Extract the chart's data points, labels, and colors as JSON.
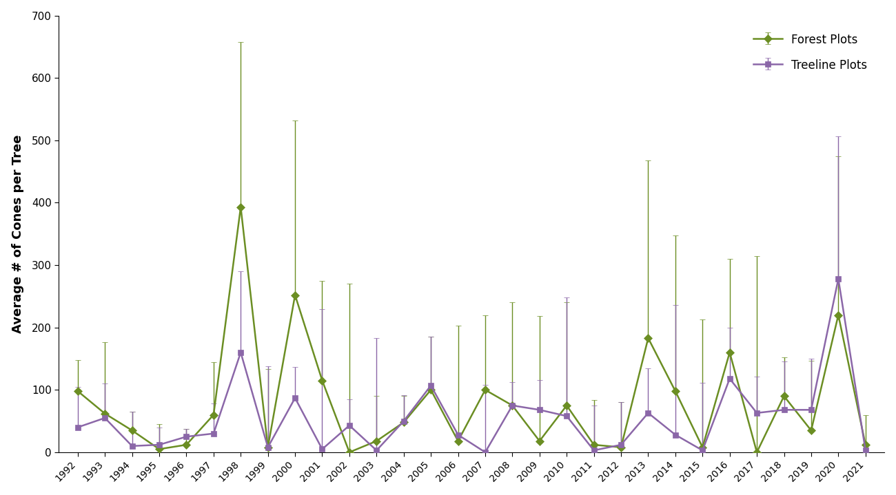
{
  "years": [
    1992,
    1993,
    1994,
    1995,
    1996,
    1997,
    1998,
    1999,
    2000,
    2001,
    2002,
    2003,
    2004,
    2005,
    2006,
    2007,
    2008,
    2009,
    2010,
    2011,
    2012,
    2013,
    2014,
    2015,
    2016,
    2017,
    2018,
    2019,
    2020,
    2021
  ],
  "forest_mean": [
    98,
    62,
    35,
    5,
    12,
    60,
    393,
    8,
    252,
    115,
    0,
    18,
    48,
    100,
    18,
    100,
    75,
    18,
    75,
    12,
    8,
    183,
    98,
    8,
    160,
    0,
    90,
    35,
    220,
    12
  ],
  "forest_err_upper": [
    50,
    115,
    30,
    40,
    25,
    85,
    265,
    125,
    280,
    160,
    270,
    72,
    42,
    85,
    185,
    120,
    165,
    200,
    165,
    72,
    72,
    285,
    250,
    205,
    150,
    315,
    62,
    112,
    255,
    48
  ],
  "forest_err_lower": [
    0,
    0,
    0,
    0,
    0,
    0,
    0,
    0,
    0,
    0,
    0,
    0,
    0,
    0,
    0,
    0,
    0,
    0,
    0,
    0,
    0,
    0,
    0,
    0,
    0,
    0,
    0,
    0,
    0,
    0
  ],
  "treeline_mean": [
    40,
    55,
    10,
    12,
    25,
    30,
    160,
    8,
    87,
    5,
    43,
    3,
    50,
    107,
    28,
    0,
    75,
    68,
    58,
    3,
    12,
    63,
    28,
    3,
    118,
    63,
    68,
    68,
    278,
    3
  ],
  "treeline_err_upper": [
    65,
    55,
    55,
    28,
    12,
    48,
    130,
    130,
    50,
    225,
    42,
    180,
    42,
    78,
    0,
    108,
    38,
    48,
    190,
    72,
    68,
    72,
    208,
    108,
    82,
    58,
    78,
    82,
    228,
    3
  ],
  "treeline_err_lower": [
    0,
    0,
    0,
    0,
    0,
    0,
    0,
    0,
    0,
    0,
    0,
    0,
    0,
    0,
    0,
    0,
    0,
    0,
    0,
    0,
    0,
    0,
    0,
    0,
    0,
    0,
    0,
    0,
    0,
    0
  ],
  "ylabel": "Average # of Cones per Tree",
  "ylim": [
    0,
    700
  ],
  "yticks": [
    0,
    100,
    200,
    300,
    400,
    500,
    600,
    700
  ],
  "forest_color": "#6b8e23",
  "treeline_color": "#8b67a8",
  "forest_label": "Forest Plots",
  "treeline_label": "Treeline Plots",
  "background_color": "#ffffff",
  "linewidth": 1.8,
  "markersize": 6
}
